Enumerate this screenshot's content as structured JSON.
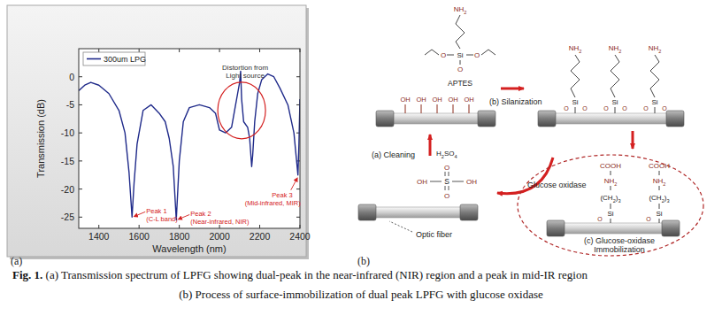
{
  "chart_data": {
    "type": "line",
    "x_label": "Wavelength (nm)",
    "y_label": "Transmission (dB)",
    "x": [
      1300,
      1330,
      1360,
      1400,
      1450,
      1500,
      1530,
      1550,
      1565,
      1575,
      1590,
      1620,
      1660,
      1700,
      1730,
      1750,
      1770,
      1785,
      1800,
      1820,
      1850,
      1900,
      1950,
      1980,
      2000,
      2030,
      2060,
      2080,
      2090,
      2100,
      2105,
      2110,
      2120,
      2140,
      2150,
      2160,
      2165,
      2175,
      2190,
      2210,
      2240,
      2270,
      2300,
      2340,
      2370,
      2390,
      2395,
      2400
    ],
    "series": [
      {
        "name": "300um LPG",
        "color": "#1f2a8a",
        "values": [
          -2.5,
          -1.5,
          -1,
          -1.5,
          -3,
          -6,
          -10,
          -17,
          -25,
          -19,
          -12,
          -6,
          -5,
          -6.5,
          -8,
          -11,
          -16,
          -25.5,
          -15,
          -8,
          -5.5,
          -5,
          -5.5,
          -6.5,
          -9.5,
          -10,
          -9,
          -5,
          -3,
          -1,
          1,
          -4,
          -8,
          -9,
          -11,
          -16,
          -14,
          -8,
          -3,
          -0.5,
          0.5,
          0,
          -2,
          -5,
          -10,
          -17.5,
          -12,
          -4
        ]
      }
    ],
    "xlim": [
      1300,
      2400
    ],
    "ylim": [
      -27,
      5
    ],
    "xticks": [
      1400,
      1600,
      1800,
      2000,
      2200,
      2400
    ],
    "yticks": [
      -25,
      -20,
      -15,
      -10,
      -5,
      0
    ],
    "legend": "upper left",
    "annotations": [
      {
        "text": [
          "Peak 1",
          "(C-L band)"
        ],
        "x": 1565,
        "y": -25
      },
      {
        "text": [
          "Peak 2",
          "(Near-infrared, NIR)"
        ],
        "x": 1785,
        "y": -25.5
      },
      {
        "text": [
          "Peak 3",
          "(Mid-infrared, MIR)"
        ],
        "x": 2390,
        "y": -17.5
      },
      {
        "text": [
          "Distortion from",
          "Light source"
        ],
        "x": 2110,
        "y": -6
      }
    ]
  },
  "panel_labels": [
    "(a)",
    "(b)"
  ],
  "diagram": {
    "fiber_label": "Optic fiber",
    "cleaning": {
      "label": "(a) Cleaning",
      "reagent": "H2SO4",
      "atoms": {
        "oxygen": "O",
        "sulfur": "S",
        "hydroxyl": "OH"
      }
    },
    "silanization": {
      "label": "(b) Silanization",
      "reagent": "APTES",
      "atoms": {
        "silicon": "Si",
        "oxygen": "O",
        "amine": "NH2"
      }
    },
    "immobilization": {
      "label": [
        "(c) Glucose-oxidase",
        "Immobilization"
      ],
      "enzyme": "Glucose oxidase",
      "atoms": {
        "carboxyl": "COOH",
        "amine": "NH2",
        "linker": "(CH2)3",
        "silicon": "Si",
        "oxygen": "O"
      }
    }
  },
  "caption": {
    "label": "Fig. 1.",
    "lines": [
      "(a) Transmission spectrum of LPFG showing dual-peak in the near-infrared (NIR) region and a peak in mid-IR region",
      "(b) Process of surface-immobilization of dual peak LPFG with glucose oxidase"
    ]
  }
}
